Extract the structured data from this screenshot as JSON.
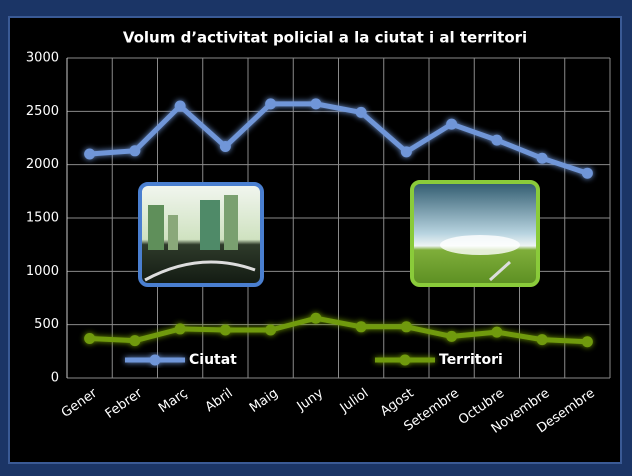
{
  "chart_data": {
    "type": "line",
    "title": "Volum d’activitat policial a la ciutat i al territori",
    "categories": [
      "Gener",
      "Febrer",
      "Març",
      "Abril",
      "Maig",
      "Juny",
      "Juliol",
      "Agost",
      "Setembre",
      "Octubre",
      "Novembre",
      "Desembre"
    ],
    "series": [
      {
        "name": "Ciutat",
        "color": "#6f96d8",
        "values": [
          2100,
          2130,
          2550,
          2170,
          2570,
          2570,
          2490,
          2120,
          2380,
          2230,
          2060,
          1920
        ]
      },
      {
        "name": "Territori",
        "color": "#6f9a10",
        "values": [
          370,
          350,
          460,
          450,
          450,
          560,
          480,
          480,
          390,
          430,
          360,
          340
        ]
      }
    ],
    "ylim": [
      0,
      3000
    ],
    "yticks": [
      0,
      500,
      1000,
      1500,
      2000,
      2500,
      3000
    ],
    "grid": true,
    "legend": "bottom"
  }
}
